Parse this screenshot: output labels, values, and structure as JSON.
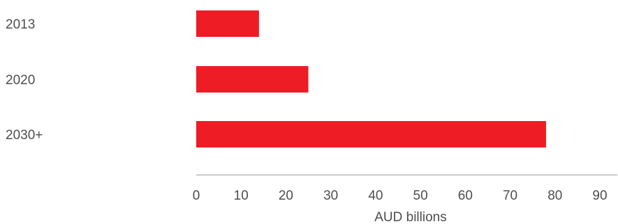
{
  "chart_data": {
    "type": "bar",
    "orientation": "horizontal",
    "categories": [
      "2013",
      "2020",
      "2030+"
    ],
    "values": [
      14,
      25,
      78
    ],
    "xlabel": "AUD billions",
    "ylabel": "",
    "xlim": [
      0,
      90
    ],
    "xticks": [
      "0",
      "10",
      "20",
      "30",
      "40",
      "50",
      "60",
      "70",
      "80",
      "90"
    ],
    "grid": false,
    "bar_color": "#ee1c25",
    "axis_color": "#999999",
    "text_color": "#4d4d4d"
  }
}
